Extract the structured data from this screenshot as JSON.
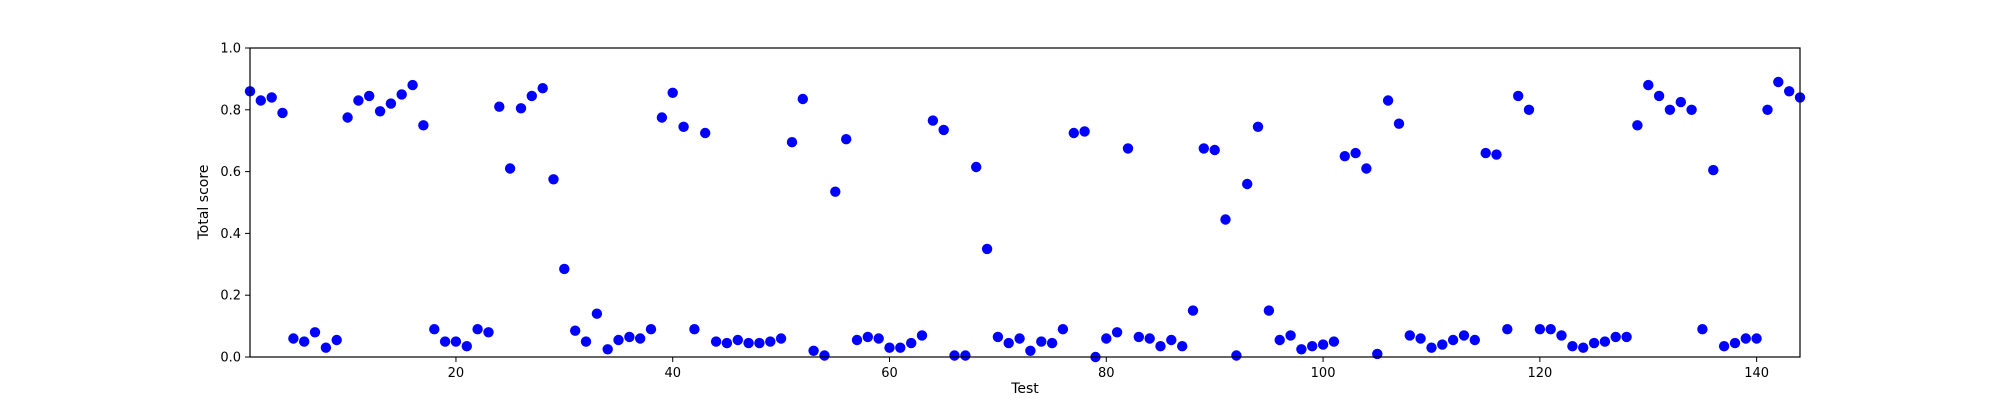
{
  "chart_data": {
    "type": "scatter",
    "title": "",
    "xlabel": "Test",
    "ylabel": "Total score",
    "xlim": [
      1,
      144
    ],
    "ylim": [
      0.0,
      1.0
    ],
    "x_ticks": [
      20,
      40,
      60,
      80,
      100,
      120,
      140
    ],
    "y_ticks": [
      0.0,
      0.2,
      0.4,
      0.6,
      0.8,
      1.0
    ],
    "x_tick_labels": [
      "20",
      "40",
      "60",
      "80",
      "100",
      "120",
      "140"
    ],
    "y_tick_labels": [
      "0.0",
      "0.2",
      "0.4",
      "0.6",
      "0.8",
      "1.0"
    ],
    "grid": false,
    "legend": "none",
    "marker_color": "#0000ff",
    "series": [
      {
        "x": [
          1,
          2,
          3,
          4,
          5,
          6,
          7,
          8,
          9,
          10,
          11,
          12,
          13,
          14,
          15,
          16,
          17,
          18,
          19,
          20,
          21,
          22,
          23,
          24,
          25,
          26,
          27,
          28,
          29,
          30,
          31,
          32,
          33,
          34,
          35,
          36,
          37,
          38,
          39,
          40,
          41,
          42,
          43,
          44,
          45,
          46,
          47,
          48,
          49,
          50,
          51,
          52,
          53,
          54,
          55,
          56,
          57,
          58,
          59,
          60,
          61,
          62,
          63,
          64,
          65,
          66,
          67,
          68,
          69,
          70,
          71,
          72,
          73,
          74,
          75,
          76,
          77,
          78,
          79,
          80,
          81,
          82,
          83,
          84,
          85,
          86,
          87,
          88,
          89,
          90,
          91,
          92,
          93,
          94,
          95,
          96,
          97,
          98,
          99,
          100,
          101,
          102,
          103,
          104,
          105,
          106,
          107,
          108,
          109,
          110,
          111,
          112,
          113,
          114,
          115,
          116,
          117,
          118,
          119,
          120,
          121,
          122,
          123,
          124,
          125,
          126,
          127,
          128,
          129,
          130,
          131,
          132,
          133,
          134,
          135,
          136,
          137,
          138,
          139,
          140,
          141,
          142,
          143,
          144
        ],
        "y": [
          0.86,
          0.83,
          0.84,
          0.79,
          0.06,
          0.05,
          0.08,
          0.03,
          0.055,
          0.775,
          0.83,
          0.845,
          0.795,
          0.82,
          0.85,
          0.88,
          0.75,
          0.09,
          0.05,
          0.05,
          0.035,
          0.09,
          0.08,
          0.81,
          0.61,
          0.805,
          0.845,
          0.87,
          0.575,
          0.285,
          0.085,
          0.05,
          0.14,
          0.025,
          0.055,
          0.065,
          0.06,
          0.09,
          0.775,
          0.855,
          0.745,
          0.09,
          0.725,
          0.05,
          0.045,
          0.055,
          0.045,
          0.045,
          0.05,
          0.06,
          0.695,
          0.835,
          0.02,
          0.005,
          0.535,
          0.705,
          0.055,
          0.065,
          0.06,
          0.03,
          0.03,
          0.045,
          0.07,
          0.765,
          0.735,
          0.005,
          0.005,
          0.615,
          0.35,
          0.065,
          0.045,
          0.06,
          0.02,
          0.05,
          0.045,
          0.09,
          0.725,
          0.73,
          0.0,
          0.06,
          0.08,
          0.675,
          0.065,
          0.06,
          0.035,
          0.055,
          0.035,
          0.15,
          0.675,
          0.67,
          0.445,
          0.005,
          0.56,
          0.745,
          0.15,
          0.055,
          0.07,
          0.025,
          0.035,
          0.04,
          0.05,
          0.65,
          0.66,
          0.61,
          0.01,
          0.83,
          0.755,
          0.07,
          0.06,
          0.03,
          0.04,
          0.055,
          0.07,
          0.055,
          0.66,
          0.655,
          0.09,
          0.845,
          0.8,
          0.09,
          0.09,
          0.07,
          0.035,
          0.03,
          0.045,
          0.05,
          0.065,
          0.065,
          0.75,
          0.88,
          0.845,
          0.8,
          0.825,
          0.8,
          0.09,
          0.605,
          0.035,
          0.045,
          0.06,
          0.06,
          0.8,
          0.89,
          0.86,
          0.84
        ]
      }
    ]
  }
}
